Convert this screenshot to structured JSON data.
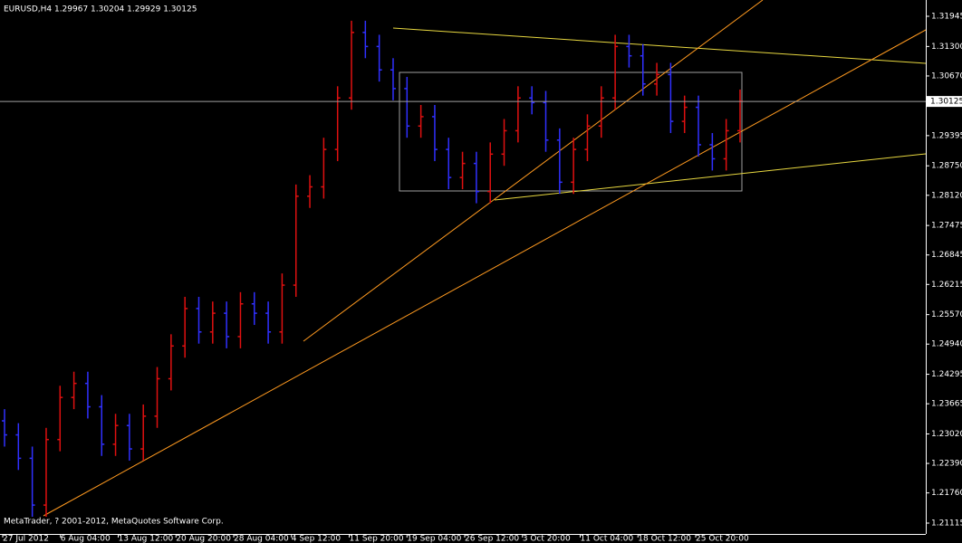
{
  "chart_data": {
    "type": "ohlc",
    "title": "EURUSD,H4  1.29967 1.30204 1.29929 1.30125",
    "footer": "MetaTrader, ? 2001-2012, MetaQuotes Software Corp.",
    "current_price": {
      "value": 1.30125,
      "label": "1.30125"
    },
    "up_color": "#e01010",
    "down_color": "#3030ff",
    "time_labels": [
      "27 Jul 2012",
      "6 Aug 04:00",
      "13 Aug 12:00",
      "20 Aug 20:00",
      "28 Aug 04:00",
      "4 Sep 12:00",
      "11 Sep 20:00",
      "19 Sep 04:00",
      "26 Sep 12:00",
      "3 Oct 20:00",
      "11 Oct 04:00",
      "18 Oct 12:00",
      "25 Oct 20:00"
    ],
    "open": [
      1.233,
      1.23,
      1.225,
      1.215,
      1.229,
      1.238,
      1.241,
      1.236,
      1.228,
      1.232,
      1.227,
      1.234,
      1.242,
      1.249,
      1.257,
      1.252,
      1.256,
      1.251,
      1.258,
      1.256,
      1.252,
      1.262,
      1.281,
      1.283,
      1.291,
      1.302,
      1.316,
      1.313,
      1.308,
      1.304,
      1.296,
      1.298,
      1.291,
      1.285,
      1.288,
      1.282,
      1.29,
      1.295,
      1.302,
      1.301,
      1.293,
      1.284,
      1.291,
      1.296,
      1.302,
      1.313,
      1.311,
      1.305,
      1.307,
      1.297,
      1.3,
      1.292,
      1.289,
      1.295
    ],
    "high": [
      1.2355,
      1.2325,
      1.2275,
      1.2315,
      1.2405,
      1.2435,
      1.2435,
      1.2385,
      1.2345,
      1.2345,
      1.2365,
      1.2445,
      1.2515,
      1.2595,
      1.2595,
      1.2585,
      1.2585,
      1.2605,
      1.2605,
      1.2585,
      1.2645,
      1.2835,
      1.2855,
      1.2935,
      1.3045,
      1.3185,
      1.3185,
      1.3155,
      1.3105,
      1.3065,
      1.3005,
      1.3005,
      1.2935,
      1.2905,
      1.2905,
      1.2925,
      1.2975,
      1.3045,
      1.3045,
      1.3035,
      1.2955,
      1.2935,
      1.2985,
      1.3045,
      1.3155,
      1.3155,
      1.3135,
      1.3095,
      1.3095,
      1.3025,
      1.3025,
      1.2945,
      1.2975,
      1.3038
    ],
    "low": [
      1.2275,
      1.2225,
      1.2125,
      1.2125,
      1.2265,
      1.2355,
      1.2335,
      1.2255,
      1.2255,
      1.2245,
      1.2245,
      1.2315,
      1.2395,
      1.2465,
      1.2495,
      1.2495,
      1.2485,
      1.2485,
      1.2535,
      1.2495,
      1.2495,
      1.2595,
      1.2785,
      1.2805,
      1.2885,
      1.2995,
      1.3105,
      1.3055,
      1.3015,
      1.2935,
      1.2935,
      1.2885,
      1.2825,
      1.2825,
      1.2795,
      1.2795,
      1.2875,
      1.2925,
      1.2985,
      1.2905,
      1.2815,
      1.2815,
      1.2885,
      1.2935,
      1.2995,
      1.3085,
      1.3025,
      1.3025,
      1.2945,
      1.2945,
      1.2895,
      1.2865,
      1.2865,
      1.2925
    ],
    "close": [
      1.23,
      1.225,
      1.215,
      1.229,
      1.238,
      1.241,
      1.236,
      1.228,
      1.232,
      1.227,
      1.234,
      1.242,
      1.249,
      1.257,
      1.252,
      1.256,
      1.251,
      1.258,
      1.256,
      1.252,
      1.262,
      1.281,
      1.283,
      1.291,
      1.302,
      1.316,
      1.313,
      1.308,
      1.304,
      1.296,
      1.298,
      1.291,
      1.285,
      1.288,
      1.282,
      1.29,
      1.295,
      1.302,
      1.301,
      1.293,
      1.284,
      1.291,
      1.296,
      1.302,
      1.313,
      1.311,
      1.305,
      1.307,
      1.297,
      1.3,
      1.292,
      1.289,
      1.295,
      1.3013
    ],
    "ylim": [
      1.20883,
      1.32274
    ],
    "yticks": [
      {
        "value": 1.31945,
        "label": "1.31945"
      },
      {
        "value": 1.313,
        "label": "1.31300"
      },
      {
        "value": 1.3067,
        "label": "1.30670"
      },
      {
        "value": 1.29395,
        "label": "1.29395"
      },
      {
        "value": 1.2875,
        "label": "1.28750"
      },
      {
        "value": 1.2812,
        "label": "1.28120"
      },
      {
        "value": 1.27475,
        "label": "1.27475"
      },
      {
        "value": 1.26845,
        "label": "1.26845"
      },
      {
        "value": 1.26215,
        "label": "1.26215"
      },
      {
        "value": 1.2557,
        "label": "1.25570"
      },
      {
        "value": 1.2494,
        "label": "1.24940"
      },
      {
        "value": 1.24295,
        "label": "1.24295"
      },
      {
        "value": 1.23665,
        "label": "1.23665"
      },
      {
        "value": 1.2302,
        "label": "1.23020"
      },
      {
        "value": 1.2239,
        "label": "1.22390"
      },
      {
        "value": 1.2176,
        "label": "1.21760"
      },
      {
        "value": 1.21115,
        "label": "1.21115"
      }
    ]
  }
}
